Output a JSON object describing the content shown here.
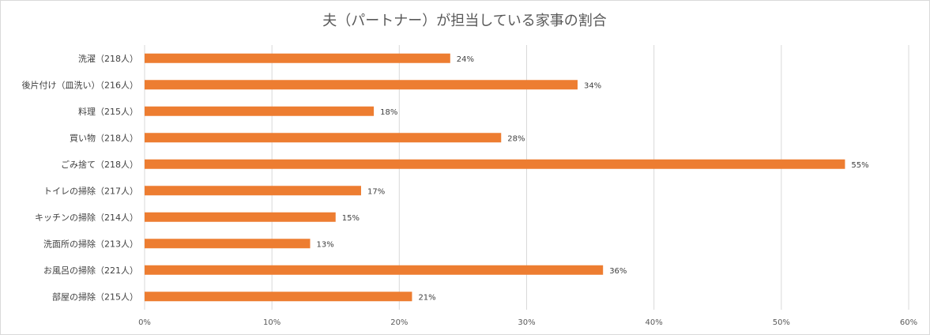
{
  "chart_data": {
    "type": "bar",
    "orientation": "horizontal",
    "title": "夫（パートナー）が担当している家事の割合",
    "categories": [
      "洗濯（218人）",
      "後片付け（皿洗い）（216人）",
      "料理（215人）",
      "買い物（218人）",
      "ごみ捨て（218人）",
      "トイレの掃除（217人）",
      "キッチンの掃除（214人）",
      "洗面所の掃除（213人）",
      "お風呂の掃除（221人）",
      "部屋の掃除（215人）"
    ],
    "values": [
      24,
      34,
      18,
      28,
      55,
      17,
      15,
      13,
      36,
      21
    ],
    "data_labels": [
      "24%",
      "34%",
      "18%",
      "28%",
      "55%",
      "17%",
      "15%",
      "13%",
      "36%",
      "21%"
    ],
    "x_ticks": [
      "0%",
      "10%",
      "20%",
      "30%",
      "40%",
      "50%",
      "60%"
    ],
    "xlim": [
      0,
      60
    ],
    "grid": true,
    "bar_color": "#ED7D31",
    "grid_color": "#d9d9d9"
  }
}
